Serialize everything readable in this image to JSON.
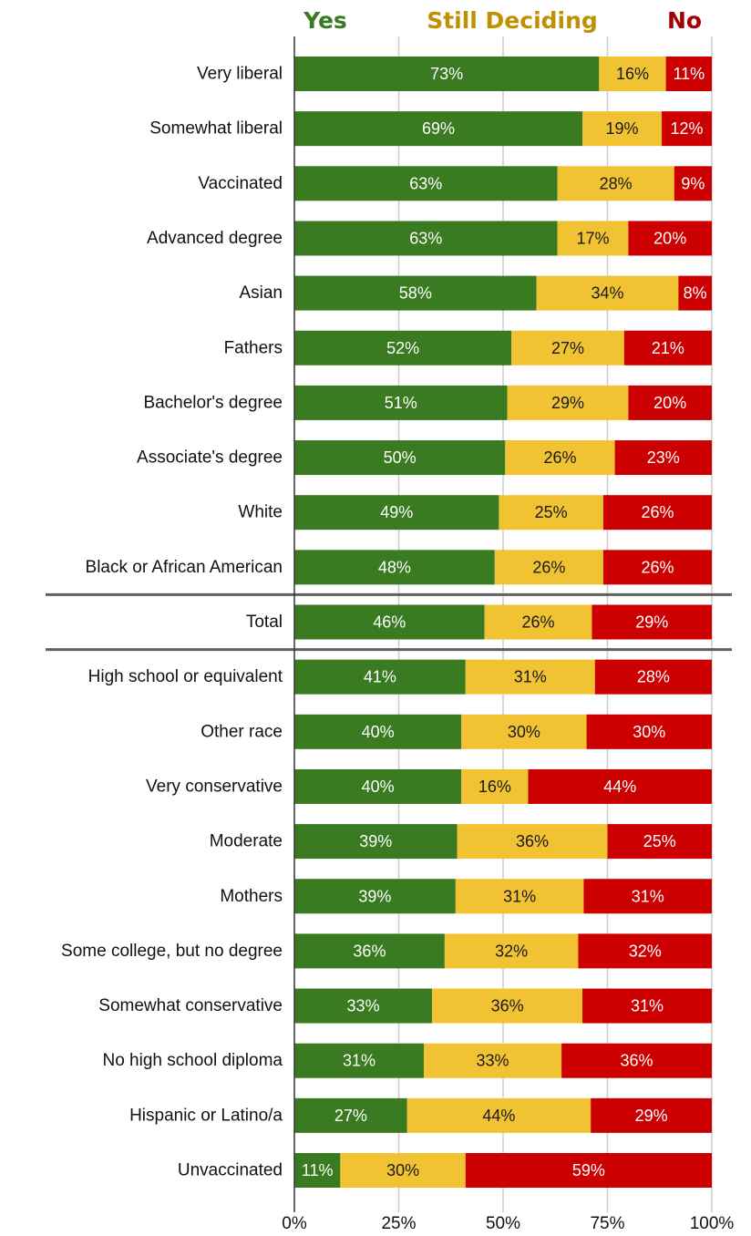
{
  "chart_data": {
    "type": "bar",
    "orientation": "horizontal",
    "stacked": true,
    "percent_stacked": true,
    "categories": [
      "Very liberal",
      "Somewhat liberal",
      "Vaccinated",
      "Advanced degree",
      "Asian",
      "Fathers",
      "Bachelor's degree",
      "Associate's degree",
      "White",
      "Black or African American",
      "Total",
      "High school or equivalent",
      "Other race",
      "Very conservative",
      "Moderate",
      "Mothers",
      "Some college, but no degree",
      "Somewhat conservative",
      "No high school diploma",
      "Hispanic or Latino/a",
      "Unvaccinated"
    ],
    "series": [
      {
        "name": "Yes",
        "color": "#3a7a21",
        "values": [
          73,
          69,
          63,
          63,
          58,
          52,
          51,
          50,
          49,
          48,
          46,
          41,
          40,
          40,
          39,
          39,
          36,
          33,
          31,
          27,
          11
        ]
      },
      {
        "name": "Still Deciding",
        "color": "#f1c232",
        "values": [
          16,
          19,
          28,
          17,
          34,
          27,
          29,
          26,
          25,
          26,
          26,
          31,
          30,
          16,
          36,
          31,
          32,
          36,
          33,
          44,
          30
        ]
      },
      {
        "name": "No",
        "color": "#cc0000",
        "values": [
          11,
          12,
          9,
          20,
          8,
          21,
          20,
          23,
          26,
          26,
          29,
          28,
          30,
          44,
          25,
          31,
          32,
          31,
          36,
          29,
          59
        ]
      }
    ],
    "data_labels": [
      [
        "73%",
        "16%",
        "11%"
      ],
      [
        "69%",
        "19%",
        "12%"
      ],
      [
        "63%",
        "28%",
        "9%"
      ],
      [
        "63%",
        "17%",
        "20%"
      ],
      [
        "58%",
        "34%",
        "8%"
      ],
      [
        "52%",
        "27%",
        "21%"
      ],
      [
        "51%",
        "29%",
        "20%"
      ],
      [
        "50%",
        "26%",
        "23%"
      ],
      [
        "49%",
        "25%",
        "26%"
      ],
      [
        "48%",
        "26%",
        "26%"
      ],
      [
        "46%",
        "26%",
        "29%"
      ],
      [
        "41%",
        "31%",
        "28%"
      ],
      [
        "40%",
        "30%",
        "30%"
      ],
      [
        "40%",
        "16%",
        "44%"
      ],
      [
        "39%",
        "36%",
        "25%"
      ],
      [
        "39%",
        "31%",
        "31%"
      ],
      [
        "36%",
        "32%",
        "32%"
      ],
      [
        "33%",
        "36%",
        "31%"
      ],
      [
        "31%",
        "33%",
        "36%"
      ],
      [
        "27%",
        "44%",
        "29%"
      ],
      [
        "11%",
        "30%",
        "59%"
      ]
    ],
    "label_colors": [
      "#ffffff",
      "#1a1a1a",
      "#ffffff"
    ],
    "x_ticks": [
      "0%",
      "25%",
      "50%",
      "75%",
      "100%"
    ],
    "xlim": [
      0,
      100
    ],
    "grid": true,
    "legend": {
      "placement": "top",
      "entries": [
        {
          "label": "Yes",
          "color": "#3a7a21"
        },
        {
          "label": "Still Deciding",
          "color": "#bf9000"
        },
        {
          "label": "No",
          "color": "#a30000"
        }
      ]
    },
    "separators_around": "Total",
    "title": "",
    "xlabel": "",
    "ylabel": ""
  }
}
